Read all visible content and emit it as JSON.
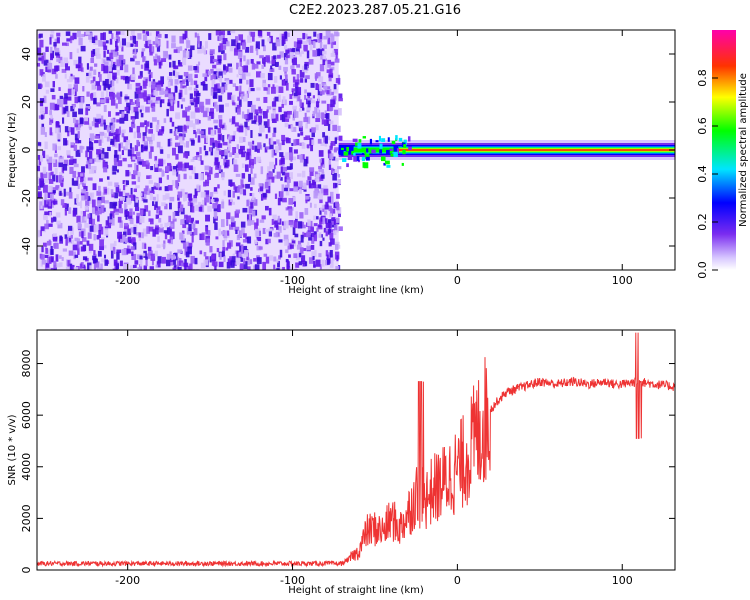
{
  "title": "C2E2.2023.287.05.21.G16",
  "chart_data": [
    {
      "type": "heatmap",
      "xlabel": "Height of straight line (km)",
      "ylabel": "Frequency (Hz)",
      "xlim": [
        -255,
        132
      ],
      "ylim": [
        -50,
        50
      ],
      "xticks": [
        -200,
        -100,
        0,
        100
      ],
      "yticks": [
        -40,
        -20,
        0,
        20,
        40
      ],
      "colorbar": {
        "label": "Normalized spectral amplitude",
        "range": [
          0,
          1
        ],
        "ticks": [
          "0.0",
          "0.2",
          "0.4",
          "0.6",
          "0.8"
        ]
      },
      "regions": [
        {
          "x": [
            -255,
            -72
          ],
          "description_values": {
            "freq_range": [
              -50,
              50
            ],
            "amplitude": 0.2
          }
        },
        {
          "x": [
            -72,
            132
          ],
          "description_values": {
            "freq_center": 0,
            "amplitude": 0.85
          }
        }
      ]
    },
    {
      "type": "line",
      "xlabel": "Height of straight line (km)",
      "ylabel": "SNR (10 * v/v)",
      "xlim": [
        -255,
        132
      ],
      "ylim": [
        0,
        9300
      ],
      "xticks": [
        -200,
        -100,
        0,
        100
      ],
      "yticks": [
        0,
        2000,
        4000,
        6000,
        8000
      ],
      "series": [
        {
          "color": "#ee3333",
          "x": [
            -255,
            -200,
            -150,
            -100,
            -70,
            -60,
            -55,
            -50,
            -45,
            -40,
            -35,
            -30,
            -25,
            -20,
            -15,
            -10,
            -5,
            0,
            5,
            10,
            15,
            20,
            25,
            30,
            40,
            50,
            60,
            70,
            80,
            90,
            95,
            100,
            110,
            120,
            132
          ],
          "y": [
            250,
            250,
            250,
            250,
            250,
            700,
            1500,
            1600,
            1500,
            2000,
            1600,
            2200,
            2900,
            2700,
            3100,
            3300,
            3600,
            3900,
            4300,
            5000,
            5600,
            6200,
            6600,
            6900,
            7100,
            7300,
            7200,
            7300,
            7200,
            7300,
            7200,
            7200,
            7300,
            7200,
            7100
          ]
        }
      ]
    }
  ]
}
